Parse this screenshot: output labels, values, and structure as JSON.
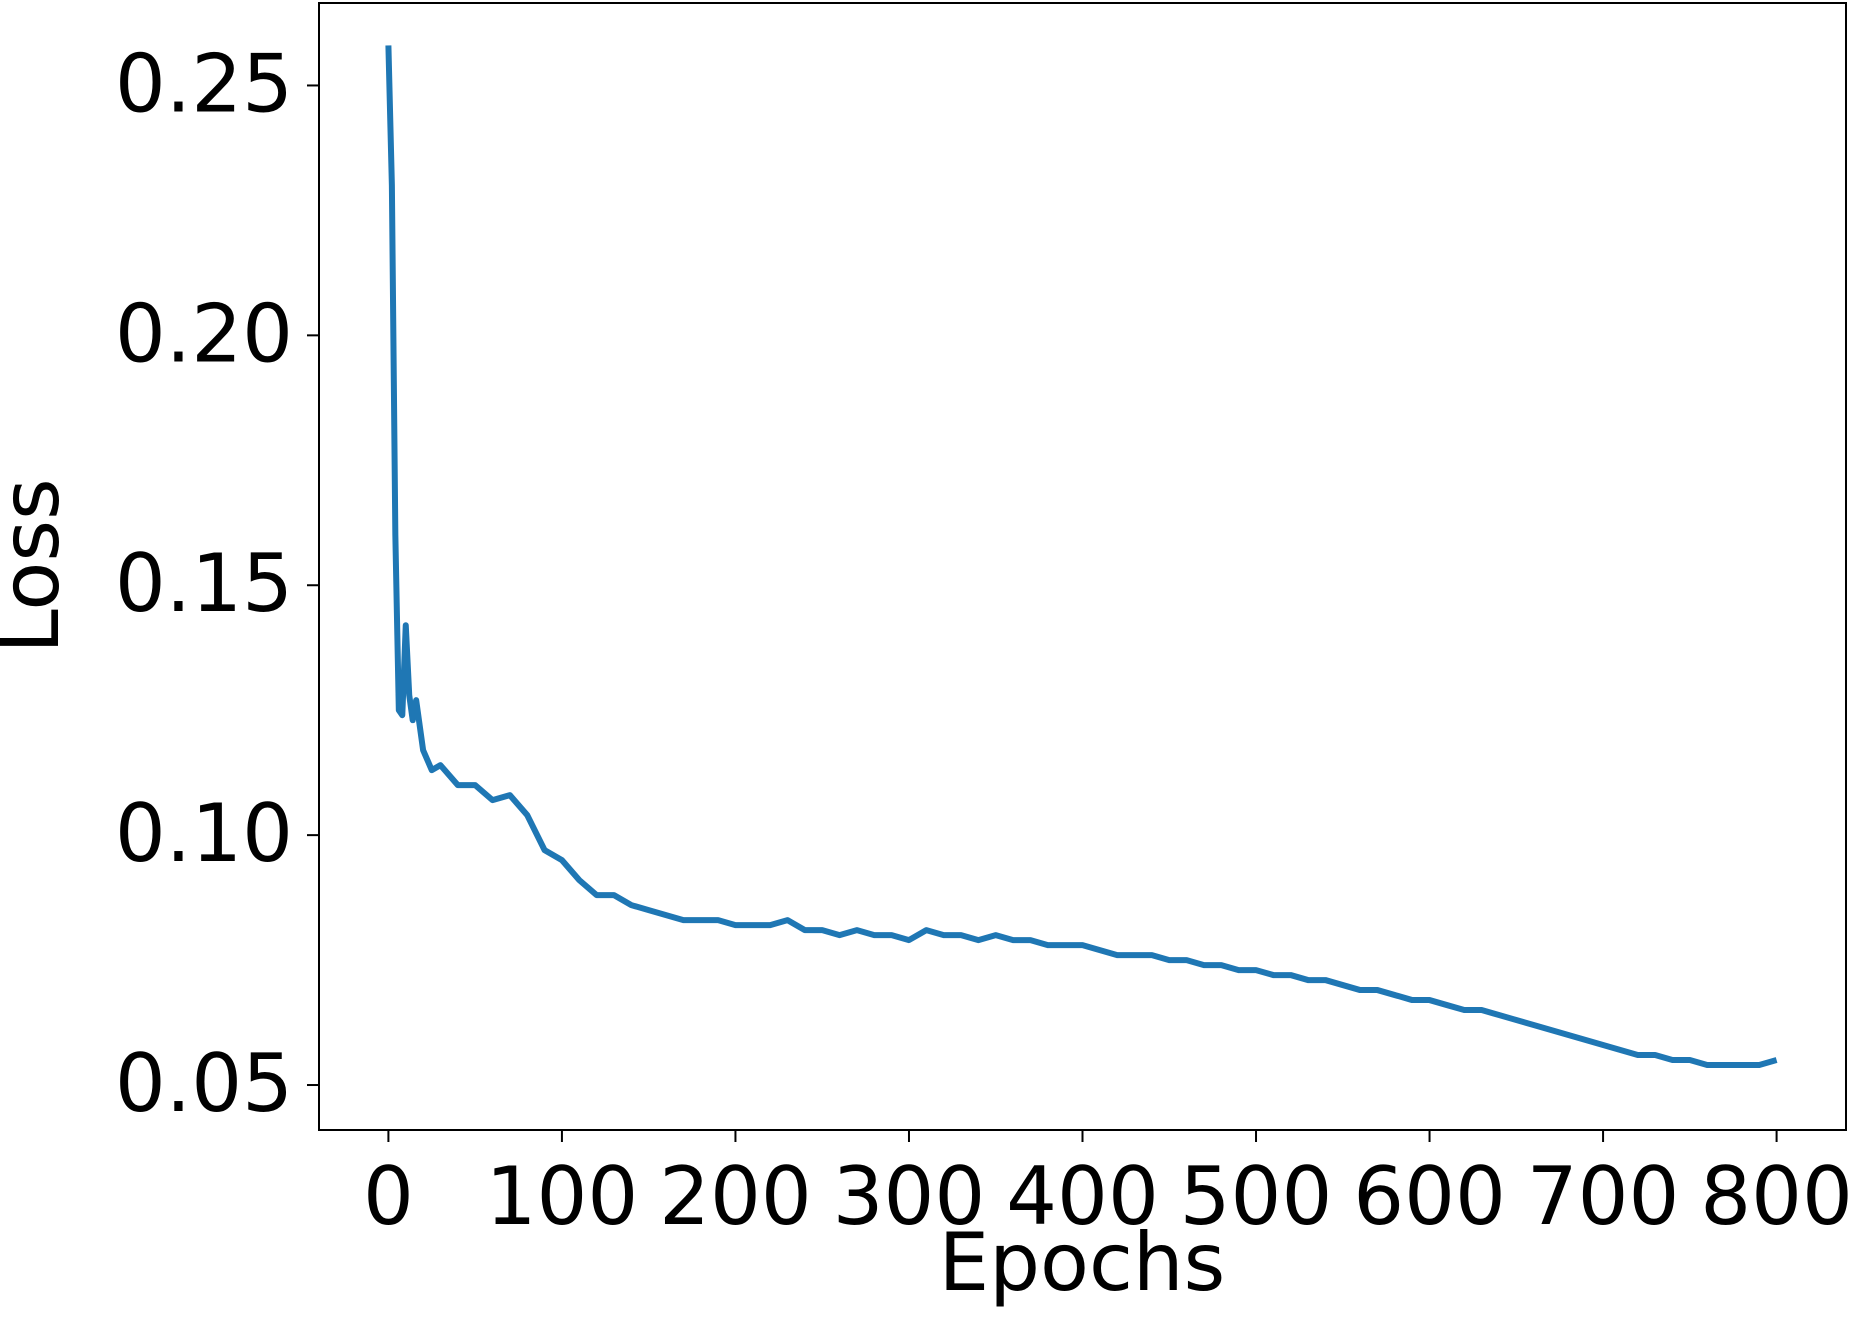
{
  "chart_data": {
    "type": "line",
    "x_label": "Epochs",
    "y_label": "Loss",
    "x": [
      0,
      2,
      4,
      6,
      8,
      10,
      12,
      14,
      16,
      20,
      25,
      30,
      40,
      50,
      60,
      70,
      80,
      90,
      100,
      110,
      120,
      130,
      140,
      150,
      160,
      170,
      180,
      190,
      200,
      210,
      220,
      230,
      240,
      250,
      260,
      270,
      280,
      290,
      300,
      310,
      320,
      330,
      340,
      350,
      360,
      370,
      380,
      390,
      400,
      410,
      420,
      430,
      440,
      450,
      460,
      470,
      480,
      490,
      500,
      510,
      520,
      530,
      540,
      550,
      560,
      570,
      580,
      590,
      600,
      610,
      620,
      630,
      640,
      650,
      660,
      670,
      680,
      690,
      700,
      710,
      720,
      730,
      740,
      750,
      760,
      770,
      780,
      790,
      800
    ],
    "series": [
      {
        "color": "#1f77b4",
        "values": [
          0.258,
          0.23,
          0.16,
          0.125,
          0.124,
          0.142,
          0.128,
          0.123,
          0.127,
          0.117,
          0.113,
          0.114,
          0.11,
          0.11,
          0.107,
          0.108,
          0.104,
          0.097,
          0.095,
          0.091,
          0.088,
          0.088,
          0.086,
          0.085,
          0.084,
          0.083,
          0.083,
          0.083,
          0.082,
          0.082,
          0.082,
          0.083,
          0.081,
          0.081,
          0.08,
          0.081,
          0.08,
          0.08,
          0.079,
          0.081,
          0.08,
          0.08,
          0.079,
          0.08,
          0.079,
          0.079,
          0.078,
          0.078,
          0.078,
          0.077,
          0.076,
          0.076,
          0.076,
          0.075,
          0.075,
          0.074,
          0.074,
          0.073,
          0.073,
          0.072,
          0.072,
          0.071,
          0.071,
          0.07,
          0.069,
          0.069,
          0.068,
          0.067,
          0.067,
          0.066,
          0.065,
          0.065,
          0.064,
          0.063,
          0.062,
          0.061,
          0.06,
          0.059,
          0.058,
          0.057,
          0.056,
          0.056,
          0.055,
          0.055,
          0.054,
          0.054,
          0.054,
          0.054,
          0.055
        ]
      }
    ],
    "xlim": [
      -40,
      840
    ],
    "ylim": [
      0.041,
      0.2665
    ],
    "xticks": [
      0,
      100,
      200,
      300,
      400,
      500,
      600,
      700,
      800
    ],
    "yticks": [
      {
        "value": 0.05,
        "label": "0.05"
      },
      {
        "value": 0.1,
        "label": "0.10"
      },
      {
        "value": 0.15,
        "label": "0.15"
      },
      {
        "value": 0.2,
        "label": "0.20"
      },
      {
        "value": 0.25,
        "label": "0.25"
      }
    ]
  }
}
